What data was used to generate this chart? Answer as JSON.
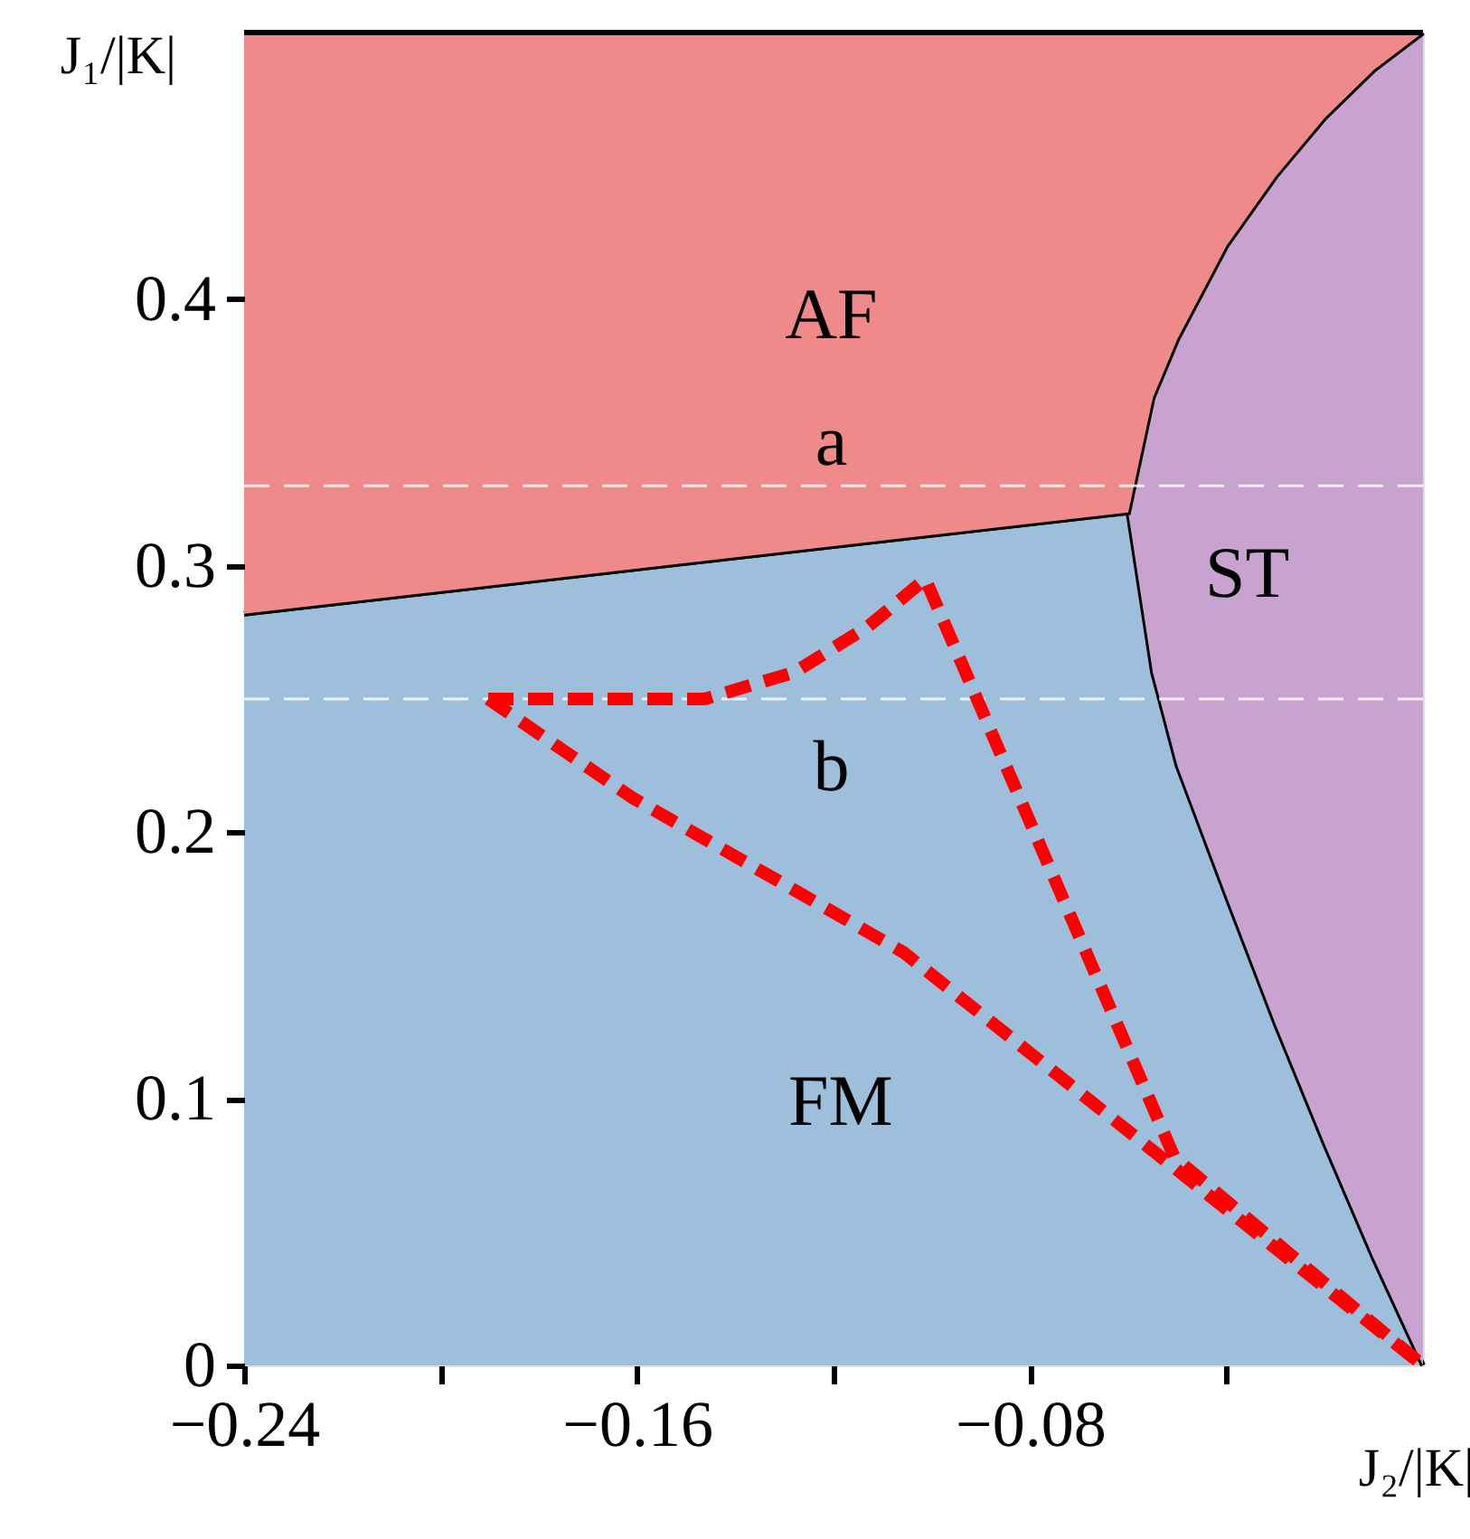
{
  "chart_data": {
    "type": "area",
    "stacked": true,
    "xlabel": "J₂/|K|",
    "ylabel": "J₁/|K|",
    "x": [
      -0.24,
      -0.06,
      -0.055,
      -0.05,
      -0.04,
      -0.03,
      -0.02,
      -0.01,
      0
    ],
    "series": [
      {
        "name": "FM",
        "color": "#9dbfdc",
        "values": [
          0.282,
          0.32,
          0.26,
          0.225,
          0.176,
          0.128,
          0.083,
          0.04,
          0
        ]
      },
      {
        "name": "ST",
        "color": "#c9a3d0",
        "values": [
          0,
          0,
          0.103,
          0.16,
          0.244,
          0.318,
          0.385,
          0.446,
          0.5
        ]
      },
      {
        "name": "AF",
        "color": "#f08a8a",
        "values": [
          0.218,
          0.18,
          0.137,
          0.115,
          0.08,
          0.054,
          0.032,
          0.014,
          0
        ]
      },
      {
        "type": "line",
        "color": "#ff0000",
        "line_style": "dashed",
        "x": [
          -0.1903,
          -0.1462,
          -0.128,
          -0.1131,
          -0.1013,
          -0.0506,
          0
        ],
        "values": [
          0.25,
          0.25,
          0.26,
          0.277,
          0.295,
          0.078,
          0
        ]
      },
      {
        "type": "line",
        "color": "#ff0000",
        "line_style": "dashed",
        "x": [
          -0.1903,
          -0.161,
          -0.1058,
          0
        ],
        "values": [
          0.25,
          0.213,
          0.155,
          0
        ]
      }
    ],
    "xlim": [
      -0.24,
      0
    ],
    "ylim": [
      0,
      0.5
    ],
    "xticks": [
      {
        "value": -0.24,
        "label": "−0.24"
      },
      {
        "value": -0.2,
        "label": null
      },
      {
        "value": -0.16,
        "label": "−0.16"
      },
      {
        "value": -0.12,
        "label": null
      },
      {
        "value": -0.08,
        "label": "−0.08"
      },
      {
        "value": -0.04,
        "label": null
      }
    ],
    "yticks": [
      0,
      0.1,
      0.2,
      0.3,
      0.4
    ],
    "ref_lines": [
      {
        "axis": "y",
        "value": 0.33,
        "color": "#ffffff",
        "line_style": "dashed"
      },
      {
        "axis": "y",
        "value": 0.25,
        "color": "#ffffff",
        "line_style": "dashed"
      }
    ],
    "annotations": [
      "a",
      "b"
    ],
    "grid": false,
    "legend": false
  }
}
